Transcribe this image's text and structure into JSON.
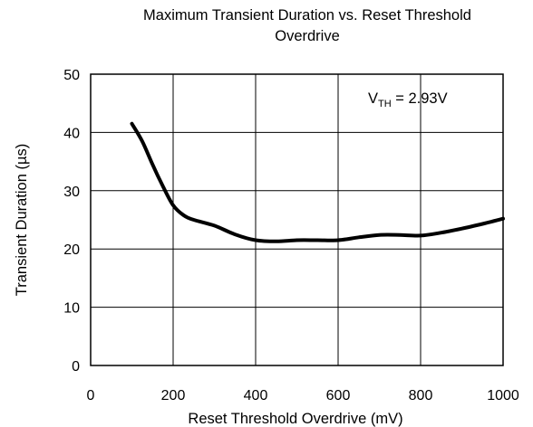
{
  "chart_data": {
    "type": "line",
    "title_line1": "Maximum Transient Duration  vs. Reset Threshold",
    "title_line2": "Overdrive",
    "xlabel": "Reset Threshold Overdrive (mV)",
    "ylabel": "Transient Duration (µs)",
    "xlim": [
      0,
      1000
    ],
    "ylim": [
      0,
      50
    ],
    "xticks": [
      0,
      200,
      400,
      600,
      800,
      1000
    ],
    "yticks": [
      0,
      10,
      20,
      30,
      40,
      50
    ],
    "grid": true,
    "annotation": {
      "main": "V",
      "sub": "TH",
      "rest": " = 2.93V"
    },
    "series": [
      {
        "x": [
          100,
          125,
          150,
          175,
          200,
          225,
          250,
          300,
          350,
          400,
          450,
          500,
          550,
          600,
          650,
          700,
          750,
          800,
          850,
          900,
          950,
          1000
        ],
        "y": [
          41.5,
          38.5,
          34.5,
          30.8,
          27.5,
          25.8,
          25.0,
          24.0,
          22.5,
          21.5,
          21.3,
          21.5,
          21.5,
          21.5,
          22.0,
          22.4,
          22.4,
          22.3,
          22.8,
          23.5,
          24.3,
          25.2
        ]
      }
    ]
  }
}
